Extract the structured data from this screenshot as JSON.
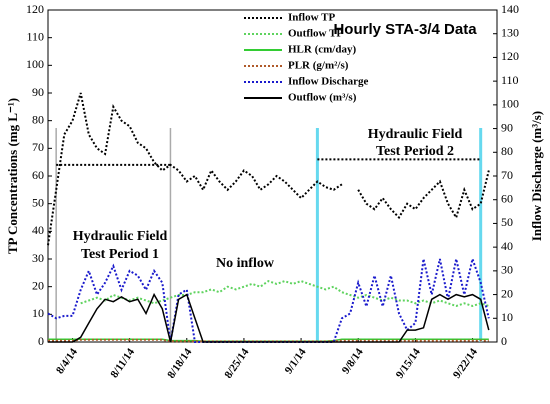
{
  "chart_data": {
    "type": "line",
    "title": "Hourly STA-3/4 Data",
    "y_label": "TP Concentrations (mg L⁻¹)",
    "y2_label": "Inflow Discharge (m³/s)",
    "annotations": [
      "Hydraulic Field",
      "Test Period 1",
      "No inflow",
      "Hydraulic Field",
      "Test Period 2"
    ],
    "x": [
      "2014-08-01",
      "2014-08-02",
      "2014-08-03",
      "2014-08-04",
      "2014-08-05",
      "2014-08-06",
      "2014-08-07",
      "2014-08-08",
      "2014-08-09",
      "2014-08-10",
      "2014-08-11",
      "2014-08-12",
      "2014-08-13",
      "2014-08-14",
      "2014-08-15",
      "2014-08-16",
      "2014-08-17",
      "2014-08-18",
      "2014-08-19",
      "2014-08-20",
      "2014-08-21",
      "2014-08-22",
      "2014-08-23",
      "2014-08-24",
      "2014-08-25",
      "2014-08-26",
      "2014-08-27",
      "2014-08-28",
      "2014-08-29",
      "2014-08-30",
      "2014-08-31",
      "2014-09-01",
      "2014-09-02",
      "2014-09-03",
      "2014-09-04",
      "2014-09-05",
      "2014-09-06",
      "2014-09-07",
      "2014-09-08",
      "2014-09-09",
      "2014-09-10",
      "2014-09-11",
      "2014-09-12",
      "2014-09-13",
      "2014-09-14",
      "2014-09-15",
      "2014-09-16",
      "2014-09-17",
      "2014-09-18",
      "2014-09-19",
      "2014-09-20",
      "2014-09-21",
      "2014-09-22",
      "2014-09-23",
      "2014-09-24"
    ],
    "xlim": [
      "2014-08-01",
      "2014-09-25"
    ],
    "xticks": [
      {
        "value": "2014-08-04",
        "label": "8/4/14"
      },
      {
        "value": "2014-08-11",
        "label": "8/11/14"
      },
      {
        "value": "2014-08-18",
        "label": "8/18/14"
      },
      {
        "value": "2014-08-25",
        "label": "8/25/14"
      },
      {
        "value": "2014-09-01",
        "label": "9/1/14"
      },
      {
        "value": "2014-09-08",
        "label": "9/8/14"
      },
      {
        "value": "2014-09-15",
        "label": "9/15/14"
      },
      {
        "value": "2014-09-22",
        "label": "9/22/14"
      }
    ],
    "ylim": [
      0,
      120
    ],
    "yticks": [
      0,
      10,
      20,
      30,
      40,
      50,
      60,
      70,
      80,
      90,
      100,
      110,
      120
    ],
    "y2lim": [
      0,
      140
    ],
    "y2ticks": [
      0,
      10,
      20,
      30,
      40,
      50,
      60,
      70,
      80,
      90,
      100,
      110,
      120,
      130,
      140
    ],
    "series": [
      {
        "name": "Inflow TP",
        "color": "#000000",
        "style": "dotted",
        "values": [
          35,
          55,
          75,
          80,
          90,
          75,
          70,
          68,
          85,
          80,
          78,
          72,
          70,
          65,
          62,
          64,
          62,
          58,
          60,
          55,
          62,
          58,
          55,
          58,
          62,
          60,
          55,
          57,
          60,
          58,
          55,
          52,
          55,
          58,
          56,
          55,
          57,
          null,
          55,
          50,
          48,
          52,
          48,
          45,
          50,
          48,
          52,
          55,
          58,
          50,
          45,
          55,
          48,
          50,
          62
        ]
      },
      {
        "name": "Outflow TP",
        "color": "#5fd35f",
        "style": "dotted",
        "values": [
          null,
          null,
          null,
          null,
          14,
          15,
          16,
          15,
          17,
          16,
          15,
          16,
          15,
          14,
          15,
          16,
          17,
          17,
          18,
          18,
          19,
          18,
          20,
          19,
          20,
          21,
          20,
          22,
          21,
          22,
          21,
          22,
          21,
          20,
          19,
          20,
          18,
          17,
          16,
          17,
          16,
          15,
          16,
          15,
          15,
          14,
          15,
          14,
          15,
          14,
          13,
          14,
          13,
          14,
          13
        ]
      },
      {
        "name": "HLR (cm/day)",
        "color": "#33cc33",
        "style": "solid",
        "values": [
          1,
          1,
          1,
          1,
          1,
          1,
          1,
          1,
          1,
          1,
          1,
          1,
          1,
          1,
          1,
          0.5,
          0.5,
          0.5,
          0.5,
          0.3,
          0.3,
          0.3,
          0.3,
          0.3,
          0.3,
          0.3,
          0.3,
          0.3,
          0.3,
          0.3,
          0.3,
          0.3,
          0.3,
          0.3,
          0.3,
          0.5,
          1,
          1,
          1,
          1,
          1,
          1,
          1,
          1,
          1,
          1,
          1,
          1,
          1,
          1,
          1,
          1,
          1,
          1,
          1
        ]
      },
      {
        "name": "PLR (g/m²/s)",
        "color": "#b05a2a",
        "style": "dotted",
        "values": [
          0.5,
          0.5,
          0.5,
          0.5,
          0.8,
          0.8,
          0.8,
          0.8,
          0.8,
          0.8,
          0.8,
          0.8,
          0.8,
          0.8,
          0.8,
          0.3,
          0.3,
          0.3,
          0.3,
          0.2,
          0.2,
          0.2,
          0.2,
          0.2,
          0.2,
          0.2,
          0.2,
          0.2,
          0.2,
          0.2,
          0.2,
          0.2,
          0.2,
          0.2,
          0.2,
          0.3,
          0.5,
          0.5,
          0.5,
          0.5,
          0.5,
          0.5,
          0.5,
          0.5,
          0.5,
          0.5,
          0.5,
          0.5,
          0.5,
          0.5,
          0.5,
          0.5,
          0.5,
          0.5,
          0.5
        ]
      },
      {
        "name": "Inflow Discharge",
        "color": "#1a1acc",
        "style": "dotted",
        "axis": "y2",
        "values": [
          12,
          10,
          11,
          11,
          22,
          30,
          20,
          25,
          32,
          22,
          30,
          28,
          22,
          30,
          25,
          0,
          20,
          22,
          0,
          0,
          0,
          0,
          0,
          0,
          0,
          0,
          0,
          0,
          0,
          0,
          0,
          0,
          0,
          0,
          0,
          0,
          10,
          12,
          25,
          15,
          28,
          15,
          28,
          12,
          5,
          8,
          35,
          20,
          35,
          18,
          35,
          20,
          35,
          25,
          10
        ]
      },
      {
        "name": "Outflow (m³/s)",
        "color": "#000000",
        "style": "solid",
        "axis": "y2",
        "values": [
          0,
          0,
          0,
          0,
          2,
          8,
          14,
          18,
          17,
          19,
          17,
          18,
          12,
          20,
          14,
          0,
          18,
          20,
          10,
          0,
          0,
          0,
          0,
          0,
          0,
          0,
          0,
          0,
          0,
          0,
          0,
          0,
          0,
          0,
          0,
          0,
          0,
          0,
          0,
          0,
          0,
          0,
          0,
          0,
          5,
          5,
          6,
          18,
          20,
          18,
          20,
          19,
          20,
          18,
          5
        ]
      }
    ],
    "periods": [
      {
        "start": "2014-08-02",
        "end": "2014-08-16",
        "color": "#aaaaaa"
      },
      {
        "start": "2014-09-03",
        "end": "2014-09-23",
        "color": "#66d9ef"
      }
    ],
    "reference_lines": [
      {
        "start": "2014-08-02",
        "end": "2014-08-16",
        "y": 64
      },
      {
        "start": "2014-09-03",
        "end": "2014-09-23",
        "y": 66
      }
    ]
  }
}
